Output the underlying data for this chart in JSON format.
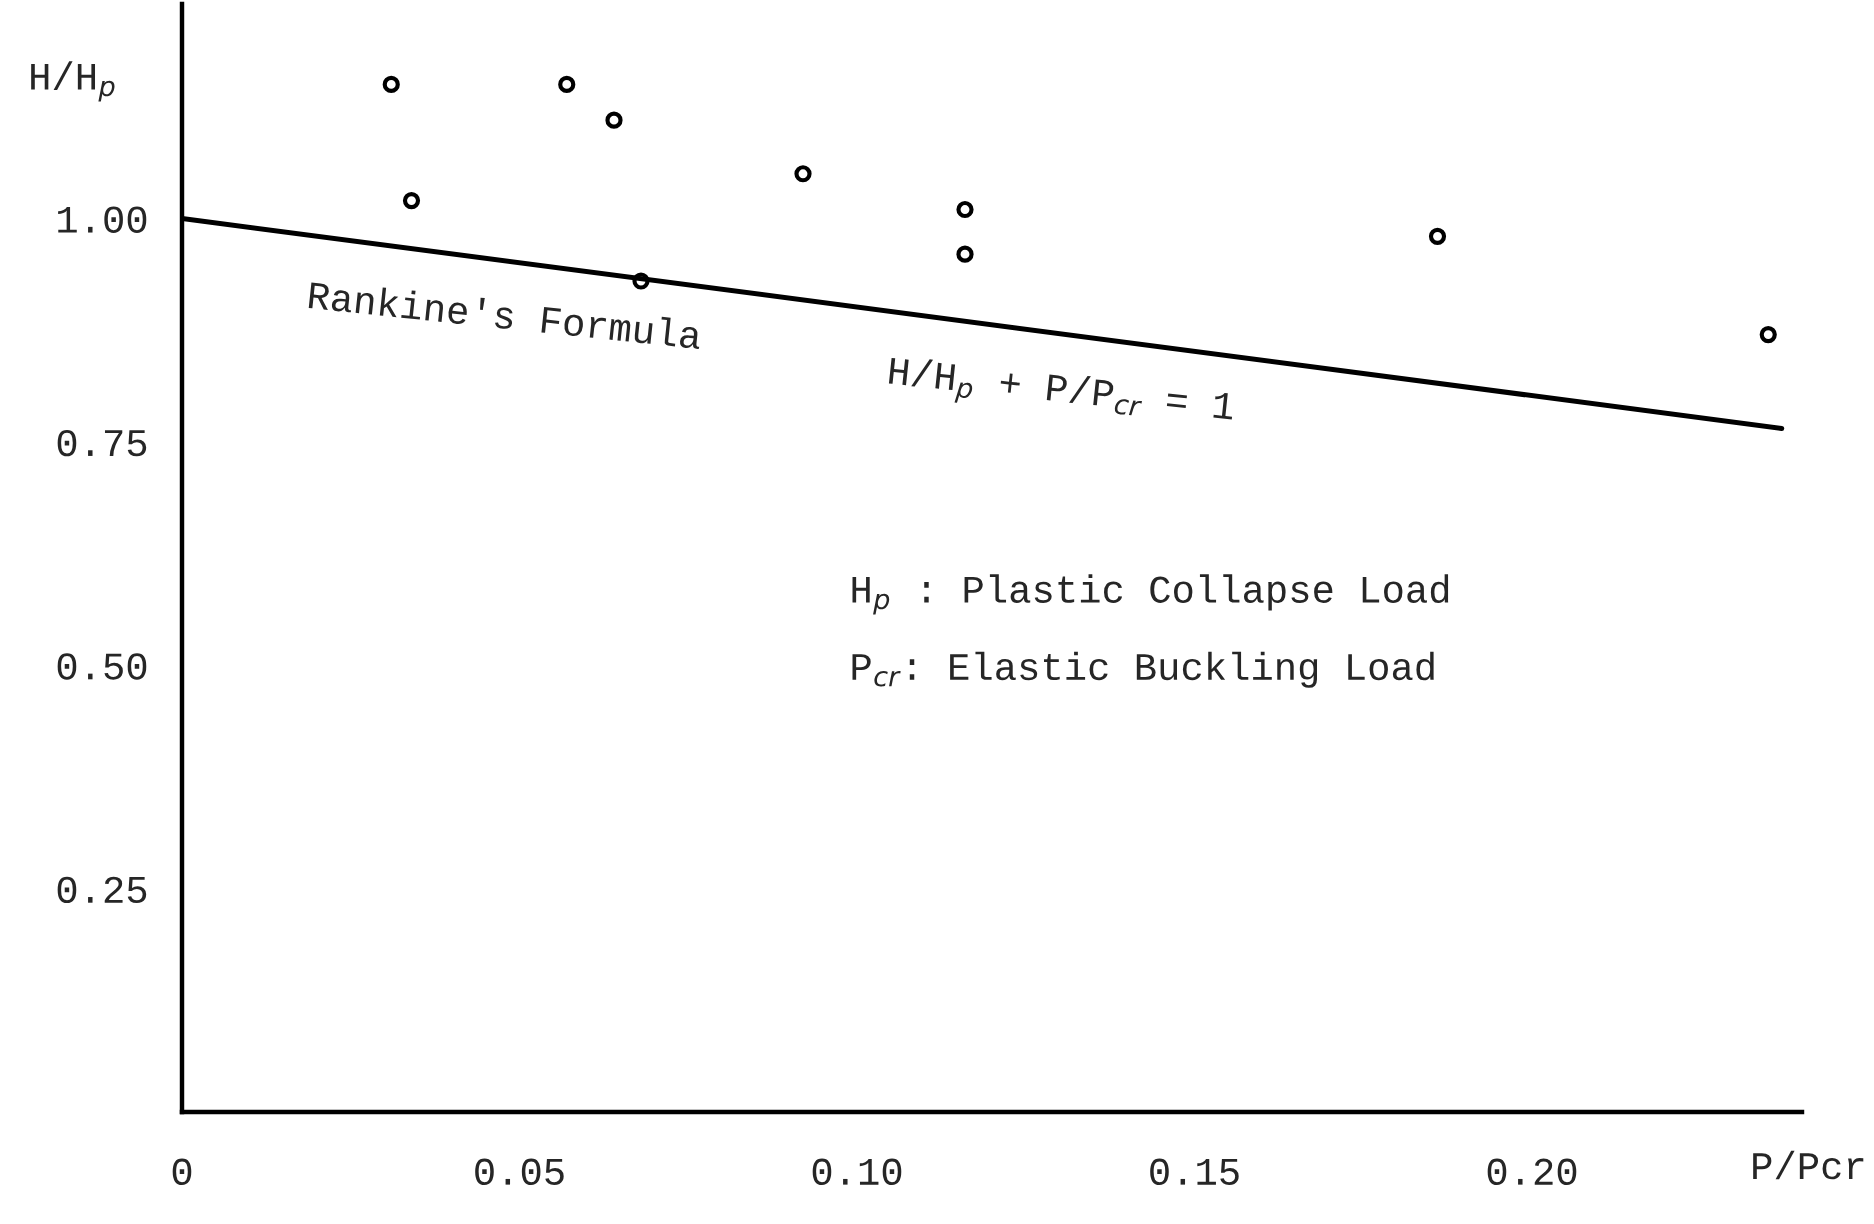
{
  "chart_data": {
    "type": "scatter",
    "xlabel": "P/Pcr",
    "ylabel": "H/H$_{p}$",
    "annotations": [
      "Rankine's Formula",
      "H/H$_{p}$ + P/P$_{cr}$ = 1",
      "H$_{p}$ : Plastic Collapse Load",
      "P$_{cr}$: Elastic Buckling Load"
    ],
    "series": [
      {
        "color": "#000000",
        "marker": "circle",
        "x": [
          0.031,
          0.034,
          0.057,
          0.064,
          0.068,
          0.092,
          0.116,
          0.116,
          0.186,
          0.235
        ],
        "values": [
          1.15,
          1.02,
          1.15,
          1.11,
          0.93,
          1.05,
          1.01,
          0.96,
          0.98,
          0.87
        ]
      },
      {
        "type": "line",
        "color": "#000000",
        "marker": "none",
        "line_style": "solid",
        "x": [
          0,
          0.237
        ],
        "values": [
          1.0,
          0.765
        ]
      }
    ],
    "xlim": [
      0,
      0.24
    ],
    "ylim": [
      0,
      1.24
    ],
    "xticks": [
      {
        "value": 0,
        "label": "0"
      },
      {
        "value": 0.05,
        "label": "0.05"
      },
      {
        "value": 0.1,
        "label": "0.10"
      },
      {
        "value": 0.15,
        "label": "0.15"
      },
      {
        "value": 0.2,
        "label": "0.20"
      }
    ],
    "yticks": [
      {
        "value": 0.25,
        "label": "0.25"
      },
      {
        "value": 0.5,
        "label": "0.50"
      },
      {
        "value": 0.75,
        "label": "0.75"
      },
      {
        "value": 1.0,
        "label": "1.00"
      }
    ],
    "grid": false,
    "legend": false
  }
}
